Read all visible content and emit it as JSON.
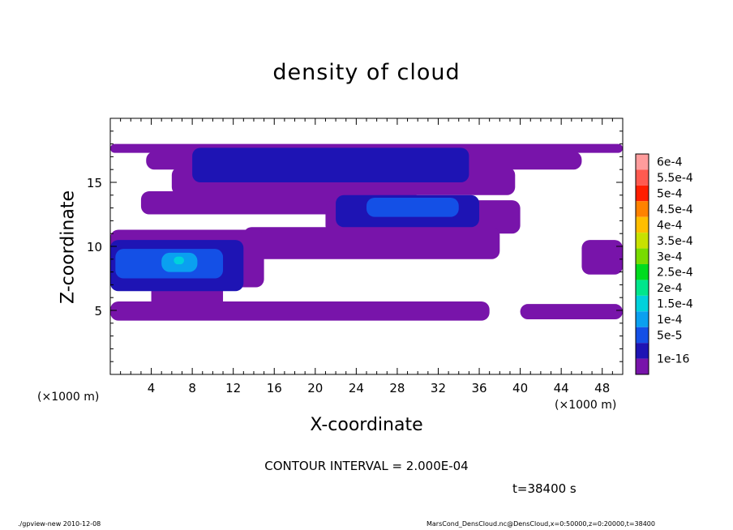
{
  "chart_data": {
    "type": "heatmap",
    "title": "density of cloud",
    "xlabel": "X-coordinate",
    "ylabel": "Z-coordinate",
    "x_unit_left": "(×1000 m)",
    "x_unit_right": "(×1000 m)",
    "xlim": [
      0,
      50
    ],
    "ylim": [
      0,
      20
    ],
    "x_ticks": [
      4,
      8,
      12,
      16,
      20,
      24,
      28,
      32,
      36,
      40,
      44,
      48
    ],
    "y_ticks": [
      5,
      10,
      15
    ],
    "contour_interval": "CONTOUR INTERVAL = 2.000E-04",
    "time": "t=38400 s",
    "legend": {
      "labels": [
        "6e-4",
        "5.5e-4",
        "5e-4",
        "4.5e-4",
        "4e-4",
        "3.5e-4",
        "3e-4",
        "2.5e-4",
        "2e-4",
        "1.5e-4",
        "1e-4",
        "5e-5",
        "1e-16"
      ],
      "colors": [
        "#ff9c9c",
        "#ff5a50",
        "#ff1e00",
        "#ff8200",
        "#ffbe00",
        "#c8e100",
        "#78dc00",
        "#00dc1e",
        "#00e68c",
        "#00d2dc",
        "#0aa0f0",
        "#1450e6",
        "#1e14b4",
        "#7814aa"
      ]
    },
    "regions": [
      {
        "level": "1e-16",
        "x": [
          0.0,
          50.0
        ],
        "z": [
          17.3,
          18.0
        ]
      },
      {
        "level": "1e-16",
        "x": [
          3.5,
          46.0
        ],
        "z": [
          16.0,
          17.4
        ]
      },
      {
        "level": "1e-16",
        "x": [
          6.0,
          39.5
        ],
        "z": [
          14.0,
          16.2
        ]
      },
      {
        "level": "1e-16",
        "x": [
          3.0,
          30.0
        ],
        "z": [
          12.5,
          14.3
        ]
      },
      {
        "level": "1e-16",
        "x": [
          21.0,
          40.0
        ],
        "z": [
          11.0,
          13.6
        ]
      },
      {
        "level": "1e-16",
        "x": [
          13.0,
          38.0
        ],
        "z": [
          9.0,
          11.5
        ]
      },
      {
        "level": "1e-16",
        "x": [
          0.0,
          15.0
        ],
        "z": [
          6.8,
          11.3
        ]
      },
      {
        "level": "1e-16",
        "x": [
          4.0,
          11.0
        ],
        "z": [
          5.0,
          8.0
        ]
      },
      {
        "level": "1e-16",
        "x": [
          0.0,
          37.0
        ],
        "z": [
          4.2,
          5.7
        ]
      },
      {
        "level": "1e-16",
        "x": [
          40.0,
          50.0
        ],
        "z": [
          4.3,
          5.5
        ]
      },
      {
        "level": "1e-16",
        "x": [
          46.0,
          50.0
        ],
        "z": [
          7.8,
          10.5
        ]
      },
      {
        "level": "5e-5",
        "x": [
          8.0,
          35.0
        ],
        "z": [
          15.0,
          17.7
        ]
      },
      {
        "level": "5e-5",
        "x": [
          22.0,
          36.0
        ],
        "z": [
          11.5,
          14.0
        ]
      },
      {
        "level": "5e-5",
        "x": [
          0.0,
          13.0
        ],
        "z": [
          6.5,
          10.5
        ]
      },
      {
        "level": "1e-4",
        "x": [
          25.0,
          34.0
        ],
        "z": [
          12.3,
          13.8
        ]
      },
      {
        "level": "1e-4",
        "x": [
          0.5,
          11.0
        ],
        "z": [
          7.5,
          9.8
        ]
      },
      {
        "level": "1.5e-4",
        "x": [
          5.0,
          8.5
        ],
        "z": [
          8.0,
          9.5
        ]
      },
      {
        "level": "2e-4",
        "x": [
          6.2,
          7.2
        ],
        "z": [
          8.6,
          9.2
        ]
      }
    ]
  },
  "footer": {
    "left": "./gpview-new   2010-12-08",
    "right": "MarsCond_DensCloud.nc@DensCloud,x=0:50000,z=0:20000,t=38400"
  }
}
